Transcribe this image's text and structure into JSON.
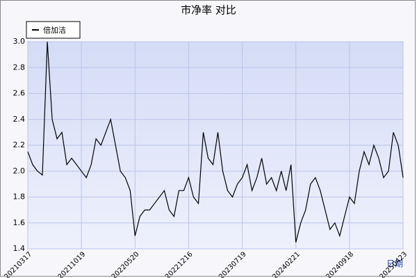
{
  "chart_data": {
    "type": "line",
    "title": "市净率  对比",
    "x_label": "日期",
    "categories": [
      "20210317",
      null,
      null,
      null,
      null,
      null,
      null,
      null,
      null,
      null,
      null,
      "20211019",
      null,
      null,
      null,
      null,
      null,
      null,
      null,
      null,
      null,
      null,
      "20220520",
      null,
      null,
      null,
      null,
      null,
      null,
      null,
      null,
      null,
      null,
      "20221216",
      null,
      null,
      null,
      null,
      null,
      null,
      null,
      null,
      null,
      null,
      "20230719",
      null,
      null,
      null,
      null,
      null,
      null,
      null,
      null,
      null,
      null,
      "20240221",
      null,
      null,
      null,
      null,
      null,
      null,
      null,
      null,
      null,
      null,
      "20240918",
      null,
      null,
      null,
      null,
      null,
      null,
      null,
      null,
      null,
      null,
      "20250423"
    ],
    "series": [
      {
        "name": "倍加洁",
        "color": "#000000",
        "values": [
          2.15,
          2.05,
          2.0,
          1.97,
          3.0,
          2.4,
          2.25,
          2.3,
          2.05,
          2.1,
          2.05,
          2.0,
          1.95,
          2.05,
          2.25,
          2.2,
          2.3,
          2.4,
          2.2,
          2.0,
          1.95,
          1.85,
          1.5,
          1.65,
          1.7,
          1.7,
          1.75,
          1.8,
          1.85,
          1.7,
          1.65,
          1.85,
          1.85,
          1.95,
          1.8,
          1.75,
          2.3,
          2.1,
          2.05,
          2.3,
          2.0,
          1.85,
          1.8,
          1.9,
          1.95,
          2.05,
          1.85,
          1.95,
          2.1,
          1.9,
          1.95,
          1.85,
          2.0,
          1.85,
          2.05,
          1.45,
          1.6,
          1.7,
          1.9,
          1.95,
          1.85,
          1.7,
          1.55,
          1.6,
          1.5,
          1.65,
          1.8,
          1.75,
          2.0,
          2.15,
          2.05,
          2.2,
          2.1,
          1.95,
          2.0,
          2.3,
          2.2,
          1.95
        ]
      }
    ],
    "ylim": [
      1.4,
      3.0
    ],
    "yticks": [
      1.4,
      1.6,
      1.8,
      {
        "value": 2,
        "label": "2.0"
      },
      2.2,
      2.4,
      2.6,
      2.8,
      {
        "value": 3,
        "label": "3.0"
      }
    ],
    "grid": true,
    "legend": "top-left"
  }
}
